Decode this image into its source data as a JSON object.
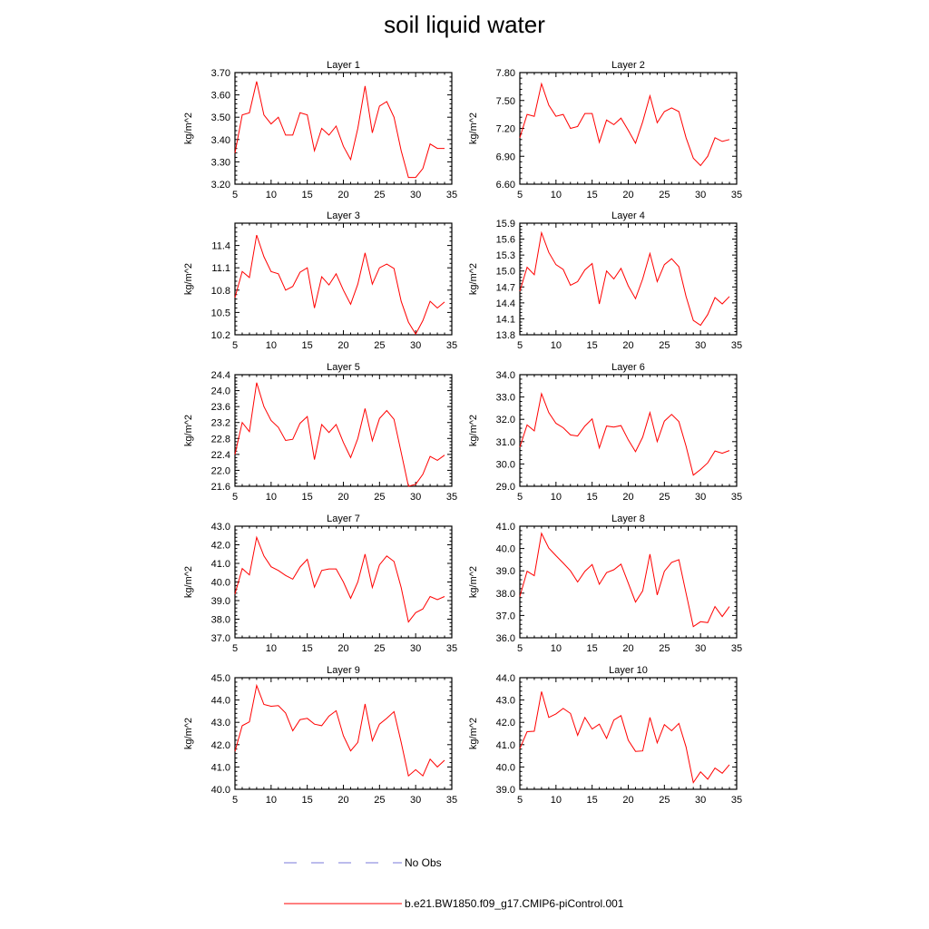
{
  "title": "soil liquid water",
  "colors": {
    "model": "#ff0000",
    "obs": "#7a7ad8",
    "axis": "#000000"
  },
  "legend": {
    "obs_label": "No Obs",
    "model_label": "b.e21.BW1850.f09_g17.CMIP6-piControl.001"
  },
  "chart_data": [
    {
      "type": "line",
      "title": "Layer 1",
      "ylabel": "kg/m^2",
      "xlim": [
        5,
        35
      ],
      "ylim": [
        3.2,
        3.7
      ],
      "xticks": [
        5,
        10,
        15,
        20,
        25,
        30,
        35
      ],
      "yticks": [
        3.2,
        3.3,
        3.4,
        3.5,
        3.6,
        3.7
      ],
      "ytick_labels": [
        "3.20",
        "3.30",
        "3.40",
        "3.50",
        "3.60",
        "3.70"
      ],
      "x": [
        5,
        6,
        7,
        8,
        9,
        10,
        11,
        12,
        13,
        14,
        15,
        16,
        17,
        18,
        19,
        20,
        21,
        22,
        23,
        24,
        25,
        26,
        27,
        28,
        29,
        30,
        31,
        32,
        33,
        34
      ],
      "series": [
        {
          "name": "b.e21.BW1850.f09_g17.CMIP6-piControl.001",
          "values": [
            3.34,
            3.51,
            3.52,
            3.66,
            3.51,
            3.47,
            3.5,
            3.42,
            3.42,
            3.52,
            3.51,
            3.35,
            3.45,
            3.42,
            3.46,
            3.37,
            3.31,
            3.45,
            3.64,
            3.43,
            3.55,
            3.57,
            3.5,
            3.35,
            3.23,
            3.23,
            3.27,
            3.38,
            3.36,
            3.36
          ]
        }
      ]
    },
    {
      "type": "line",
      "title": "Layer 2",
      "ylabel": "kg/m^2",
      "xlim": [
        5,
        35
      ],
      "ylim": [
        6.6,
        7.8
      ],
      "xticks": [
        5,
        10,
        15,
        20,
        25,
        30,
        35
      ],
      "yticks": [
        6.6,
        6.9,
        7.2,
        7.5,
        7.8
      ],
      "ytick_labels": [
        "6.60",
        "6.90",
        "7.20",
        "7.50",
        "7.80"
      ],
      "x": [
        5,
        6,
        7,
        8,
        9,
        10,
        11,
        12,
        13,
        14,
        15,
        16,
        17,
        18,
        19,
        20,
        21,
        22,
        23,
        24,
        25,
        26,
        27,
        28,
        29,
        30,
        31,
        32,
        33,
        34
      ],
      "series": [
        {
          "name": "b.e21.BW1850.f09_g17.CMIP6-piControl.001",
          "values": [
            7.1,
            7.35,
            7.33,
            7.68,
            7.45,
            7.33,
            7.35,
            7.2,
            7.22,
            7.36,
            7.36,
            7.05,
            7.29,
            7.24,
            7.31,
            7.18,
            7.04,
            7.27,
            7.55,
            7.26,
            7.38,
            7.42,
            7.38,
            7.1,
            6.88,
            6.8,
            6.9,
            7.1,
            7.06,
            7.08
          ]
        }
      ]
    },
    {
      "type": "line",
      "title": "Layer 3",
      "ylabel": "kg/m^2",
      "xlim": [
        5,
        35
      ],
      "ylim": [
        10.2,
        11.7
      ],
      "xticks": [
        5,
        10,
        15,
        20,
        25,
        30,
        35
      ],
      "yticks": [
        10.2,
        10.5,
        10.8,
        11.1,
        11.4
      ],
      "ytick_labels": [
        "10.2",
        "10.5",
        "10.8",
        "11.1",
        "11.4"
      ],
      "x": [
        5,
        6,
        7,
        8,
        9,
        10,
        11,
        12,
        13,
        14,
        15,
        16,
        17,
        18,
        19,
        20,
        21,
        22,
        23,
        24,
        25,
        26,
        27,
        28,
        29,
        30,
        31,
        32,
        33,
        34
      ],
      "series": [
        {
          "name": "b.e21.BW1850.f09_g17.CMIP6-piControl.001",
          "values": [
            10.7,
            11.05,
            10.97,
            11.54,
            11.25,
            11.05,
            11.02,
            10.8,
            10.85,
            11.04,
            11.1,
            10.56,
            10.98,
            10.87,
            11.02,
            10.8,
            10.61,
            10.88,
            11.3,
            10.88,
            11.1,
            11.15,
            11.09,
            10.65,
            10.37,
            10.21,
            10.39,
            10.65,
            10.56,
            10.64
          ]
        }
      ]
    },
    {
      "type": "line",
      "title": "Layer 4",
      "ylabel": "kg/m^2",
      "xlim": [
        5,
        35
      ],
      "ylim": [
        13.8,
        15.9
      ],
      "xticks": [
        5,
        10,
        15,
        20,
        25,
        30,
        35
      ],
      "yticks": [
        13.8,
        14.1,
        14.4,
        14.7,
        15.0,
        15.3,
        15.6,
        15.9
      ],
      "ytick_labels": [
        "13.8",
        "14.1",
        "14.4",
        "14.7",
        "15.0",
        "15.3",
        "15.6",
        "15.9"
      ],
      "x": [
        5,
        6,
        7,
        8,
        9,
        10,
        11,
        12,
        13,
        14,
        15,
        16,
        17,
        18,
        19,
        20,
        21,
        22,
        23,
        24,
        25,
        26,
        27,
        28,
        29,
        30,
        31,
        32,
        33,
        34
      ],
      "series": [
        {
          "name": "b.e21.BW1850.f09_g17.CMIP6-piControl.001",
          "values": [
            14.62,
            15.07,
            14.93,
            15.72,
            15.35,
            15.12,
            15.03,
            14.73,
            14.8,
            15.02,
            15.14,
            14.38,
            15.0,
            14.85,
            15.05,
            14.72,
            14.48,
            14.85,
            15.33,
            14.8,
            15.12,
            15.23,
            15.08,
            14.52,
            14.07,
            13.98,
            14.18,
            14.5,
            14.38,
            14.52
          ]
        }
      ]
    },
    {
      "type": "line",
      "title": "Layer 5",
      "ylabel": "kg/m^2",
      "xlim": [
        5,
        35
      ],
      "ylim": [
        21.6,
        24.4
      ],
      "xticks": [
        5,
        10,
        15,
        20,
        25,
        30,
        35
      ],
      "yticks": [
        21.6,
        22.0,
        22.4,
        22.8,
        23.2,
        23.6,
        24.0,
        24.4
      ],
      "ytick_labels": [
        "21.6",
        "22.0",
        "22.4",
        "22.8",
        "23.2",
        "23.6",
        "24.0",
        "24.4"
      ],
      "x": [
        5,
        6,
        7,
        8,
        9,
        10,
        11,
        12,
        13,
        14,
        15,
        16,
        17,
        18,
        19,
        20,
        21,
        22,
        23,
        24,
        25,
        26,
        27,
        28,
        29,
        30,
        31,
        32,
        33,
        34
      ],
      "series": [
        {
          "name": "b.e21.BW1850.f09_g17.CMIP6-piControl.001",
          "values": [
            22.4,
            23.2,
            22.97,
            24.2,
            23.6,
            23.25,
            23.08,
            22.75,
            22.78,
            23.18,
            23.35,
            22.27,
            23.15,
            22.95,
            23.15,
            22.7,
            22.32,
            22.8,
            23.55,
            22.74,
            23.3,
            23.5,
            23.28,
            22.45,
            21.6,
            21.65,
            21.9,
            22.35,
            22.25,
            22.38
          ]
        }
      ]
    },
    {
      "type": "line",
      "title": "Layer 6",
      "ylabel": "kg/m^2",
      "xlim": [
        5,
        35
      ],
      "ylim": [
        29.0,
        34.0
      ],
      "xticks": [
        5,
        10,
        15,
        20,
        25,
        30,
        35
      ],
      "yticks": [
        29.0,
        30.0,
        31.0,
        32.0,
        33.0,
        34.0
      ],
      "ytick_labels": [
        "29.0",
        "30.0",
        "31.0",
        "32.0",
        "33.0",
        "34.0"
      ],
      "x": [
        5,
        6,
        7,
        8,
        9,
        10,
        11,
        12,
        13,
        14,
        15,
        16,
        17,
        18,
        19,
        20,
        21,
        22,
        23,
        24,
        25,
        26,
        27,
        28,
        29,
        30,
        31,
        32,
        33,
        34
      ],
      "series": [
        {
          "name": "b.e21.BW1850.f09_g17.CMIP6-piControl.001",
          "values": [
            30.75,
            31.75,
            31.48,
            33.15,
            32.3,
            31.82,
            31.62,
            31.3,
            31.25,
            31.7,
            32.02,
            30.72,
            31.7,
            31.65,
            31.72,
            31.08,
            30.55,
            31.2,
            32.3,
            31.0,
            31.92,
            32.22,
            31.9,
            30.8,
            29.5,
            29.75,
            30.05,
            30.58,
            30.48,
            30.6
          ]
        }
      ]
    },
    {
      "type": "line",
      "title": "Layer 7",
      "ylabel": "kg/m^2",
      "xlim": [
        5,
        35
      ],
      "ylim": [
        37.0,
        43.0
      ],
      "xticks": [
        5,
        10,
        15,
        20,
        25,
        30,
        35
      ],
      "yticks": [
        37.0,
        38.0,
        39.0,
        40.0,
        41.0,
        42.0,
        43.0
      ],
      "ytick_labels": [
        "37.0",
        "38.0",
        "39.0",
        "40.0",
        "41.0",
        "42.0",
        "43.0"
      ],
      "x": [
        5,
        6,
        7,
        8,
        9,
        10,
        11,
        12,
        13,
        14,
        15,
        16,
        17,
        18,
        19,
        20,
        21,
        22,
        23,
        24,
        25,
        26,
        27,
        28,
        29,
        30,
        31,
        32,
        33,
        34
      ],
      "series": [
        {
          "name": "b.e21.BW1850.f09_g17.CMIP6-piControl.001",
          "values": [
            39.35,
            40.72,
            40.38,
            42.4,
            41.4,
            40.82,
            40.62,
            40.35,
            40.15,
            40.8,
            41.22,
            39.72,
            40.62,
            40.7,
            40.7,
            40.0,
            39.12,
            40.0,
            41.5,
            39.7,
            40.92,
            41.4,
            41.1,
            39.7,
            37.85,
            38.35,
            38.55,
            39.22,
            39.05,
            39.22
          ]
        }
      ]
    },
    {
      "type": "line",
      "title": "Layer 8",
      "ylabel": "kg/m^2",
      "xlim": [
        5,
        35
      ],
      "ylim": [
        36.0,
        41.0
      ],
      "xticks": [
        5,
        10,
        15,
        20,
        25,
        30,
        35
      ],
      "yticks": [
        36.0,
        37.0,
        38.0,
        39.0,
        40.0,
        41.0
      ],
      "ytick_labels": [
        "36.0",
        "37.0",
        "38.0",
        "39.0",
        "40.0",
        "41.0"
      ],
      "x": [
        5,
        6,
        7,
        8,
        9,
        10,
        11,
        12,
        13,
        14,
        15,
        16,
        17,
        18,
        19,
        20,
        21,
        22,
        23,
        24,
        25,
        26,
        27,
        28,
        29,
        30,
        31,
        32,
        33,
        34
      ],
      "series": [
        {
          "name": "b.e21.BW1850.f09_g17.CMIP6-piControl.001",
          "values": [
            37.85,
            38.98,
            38.78,
            40.68,
            40.02,
            39.68,
            39.35,
            39.0,
            38.5,
            38.98,
            39.28,
            38.4,
            38.92,
            39.05,
            39.3,
            38.45,
            37.6,
            38.1,
            39.75,
            37.92,
            38.98,
            39.38,
            39.5,
            38.0,
            36.5,
            36.72,
            36.68,
            37.4,
            36.95,
            37.4
          ]
        }
      ]
    },
    {
      "type": "line",
      "title": "Layer 9",
      "ylabel": "kg/m^2",
      "xlim": [
        5,
        35
      ],
      "ylim": [
        40.0,
        45.0
      ],
      "xticks": [
        5,
        10,
        15,
        20,
        25,
        30,
        35
      ],
      "yticks": [
        40.0,
        41.0,
        42.0,
        43.0,
        44.0,
        45.0
      ],
      "ytick_labels": [
        "40.0",
        "41.0",
        "42.0",
        "43.0",
        "44.0",
        "45.0"
      ],
      "x": [
        5,
        6,
        7,
        8,
        9,
        10,
        11,
        12,
        13,
        14,
        15,
        16,
        17,
        18,
        19,
        20,
        21,
        22,
        23,
        24,
        25,
        26,
        27,
        28,
        29,
        30,
        31,
        32,
        33,
        34
      ],
      "series": [
        {
          "name": "b.e21.BW1850.f09_g17.CMIP6-piControl.001",
          "values": [
            41.7,
            42.85,
            43.02,
            44.65,
            43.8,
            43.72,
            43.75,
            43.42,
            42.62,
            43.12,
            43.18,
            42.92,
            42.85,
            43.28,
            43.52,
            42.4,
            41.72,
            42.1,
            43.82,
            42.18,
            42.92,
            43.18,
            43.48,
            42.1,
            40.6,
            40.88,
            40.6,
            41.35,
            41.0,
            41.3
          ]
        }
      ]
    },
    {
      "type": "line",
      "title": "Layer 10",
      "ylabel": "kg/m^2",
      "xlim": [
        5,
        35
      ],
      "ylim": [
        39.0,
        44.0
      ],
      "xticks": [
        5,
        10,
        15,
        20,
        25,
        30,
        35
      ],
      "yticks": [
        39.0,
        40.0,
        41.0,
        42.0,
        43.0,
        44.0
      ],
      "ytick_labels": [
        "39.0",
        "40.0",
        "41.0",
        "42.0",
        "43.0",
        "44.0"
      ],
      "x": [
        5,
        6,
        7,
        8,
        9,
        10,
        11,
        12,
        13,
        14,
        15,
        16,
        17,
        18,
        19,
        20,
        21,
        22,
        23,
        24,
        25,
        26,
        27,
        28,
        29,
        30,
        31,
        32,
        33,
        34
      ],
      "series": [
        {
          "name": "b.e21.BW1850.f09_g17.CMIP6-piControl.001",
          "values": [
            40.82,
            41.58,
            41.6,
            43.38,
            42.22,
            42.38,
            42.62,
            42.4,
            41.42,
            42.22,
            41.7,
            41.92,
            41.28,
            42.1,
            42.3,
            41.2,
            40.7,
            40.72,
            42.22,
            41.08,
            41.9,
            41.62,
            41.95,
            40.9,
            39.3,
            39.78,
            39.45,
            39.95,
            39.72,
            40.1
          ]
        }
      ]
    }
  ]
}
